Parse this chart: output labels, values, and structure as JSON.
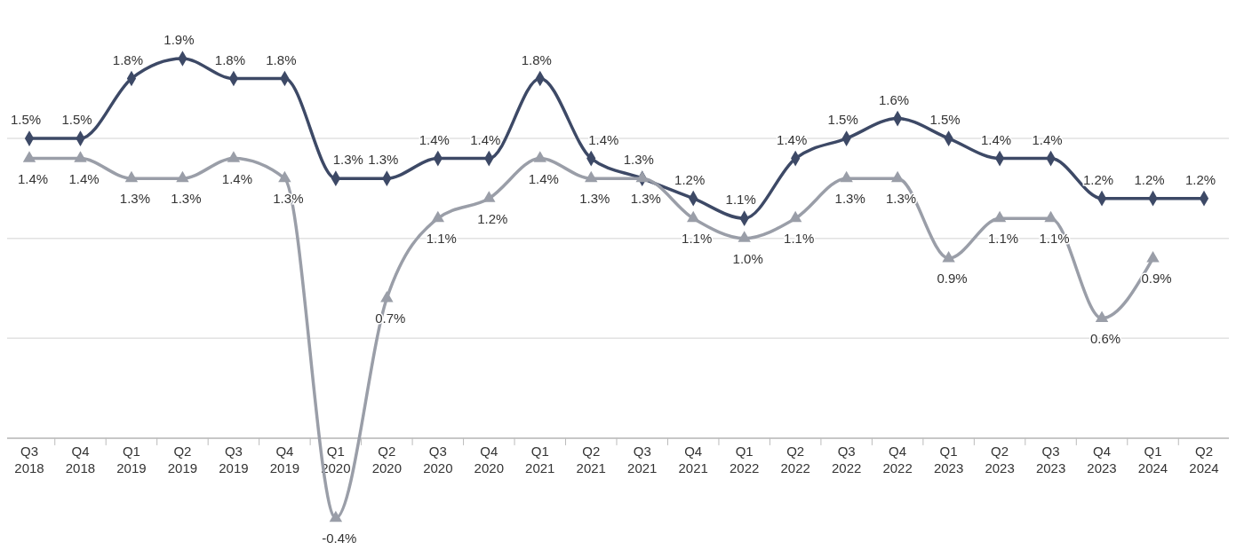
{
  "chart_data": {
    "type": "line",
    "categories": [
      "Q3 2018",
      "Q4 2018",
      "Q1 2019",
      "Q2 2019",
      "Q3 2019",
      "Q4 2019",
      "Q1 2020",
      "Q2 2020",
      "Q3 2020",
      "Q4 2020",
      "Q1 2021",
      "Q2 2021",
      "Q3 2021",
      "Q4 2021",
      "Q1 2022",
      "Q2 2022",
      "Q3 2022",
      "Q4 2022",
      "Q1 2023",
      "Q2 2023",
      "Q3 2023",
      "Q4 2023",
      "Q1 2024",
      "Q2 2024"
    ],
    "series": [
      {
        "color": "#3d4966",
        "marker": "diamond",
        "values": [
          1.5,
          1.5,
          1.8,
          1.9,
          1.8,
          1.8,
          1.3,
          1.3,
          1.4,
          1.4,
          1.8,
          1.4,
          1.3,
          1.2,
          1.1,
          1.4,
          1.5,
          1.6,
          1.5,
          1.4,
          1.4,
          1.2,
          1.2,
          1.2
        ],
        "value_labels": [
          "1.5%",
          "1.5%",
          "1.8%",
          "1.9%",
          "1.8%",
          "1.8%",
          "1.3%",
          "1.3%",
          "1.4%",
          "1.4%",
          "1.8%",
          "1.4%",
          "1.3%",
          "1.2%",
          "1.1%",
          "1.4%",
          "1.5%",
          "1.6%",
          "1.5%",
          "1.4%",
          "1.4%",
          "1.2%",
          "1.2%",
          "1.2%"
        ]
      },
      {
        "color": "#9a9ea8",
        "marker": "triangle",
        "values": [
          1.4,
          1.4,
          1.3,
          1.3,
          1.4,
          1.3,
          -0.4,
          0.7,
          1.1,
          1.2,
          1.4,
          1.3,
          1.3,
          1.1,
          1.0,
          1.1,
          1.3,
          1.3,
          0.9,
          1.1,
          1.1,
          0.6,
          0.9,
          null
        ],
        "value_labels": [
          "1.4%",
          "1.4%",
          "1.3%",
          "1.3%",
          "1.4%",
          "1.3%",
          "-0.4%",
          "0.7%",
          "1.1%",
          "1.2%",
          "1.4%",
          "1.3%",
          "1.3%",
          "1.1%",
          "1.0%",
          "1.1%",
          "1.3%",
          "1.3%",
          "0.9%",
          "1.1%",
          "1.1%",
          "0.6%",
          "0.9%",
          null
        ]
      }
    ],
    "tick_labels": "x",
    "grid": "y",
    "line_style": "solid"
  }
}
